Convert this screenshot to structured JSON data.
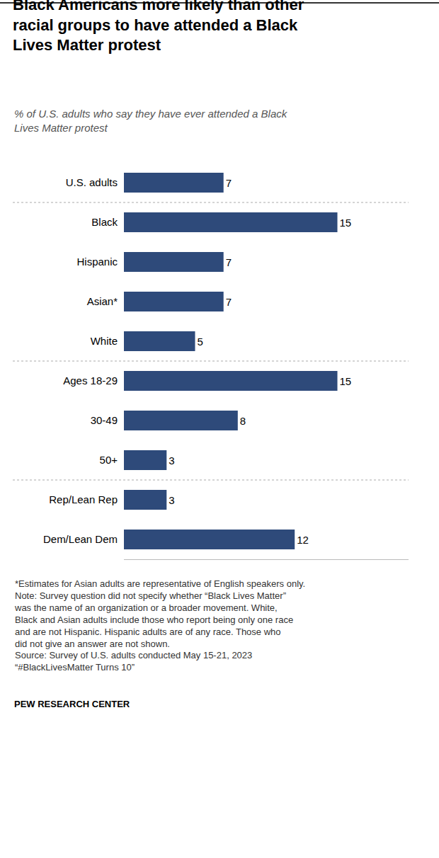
{
  "chart_data": {
    "type": "bar",
    "orientation": "horizontal",
    "title": "Black Americans more likely than other\nracial groups to have attended a Black\nLives Matter protest",
    "subtitle": "% of U.S. adults who say they have ever attended a Black\nLives Matter protest",
    "categories": [
      "U.S. adults",
      "Black",
      "Hispanic",
      "Asian*",
      "White",
      "Ages 18-29",
      "30-49",
      "50+",
      "Rep/Lean Rep",
      "Dem/Lean Dem"
    ],
    "values": [
      7,
      15,
      7,
      7,
      5,
      15,
      8,
      3,
      3,
      12
    ],
    "color": "#2E4A7A",
    "xlim": [
      0,
      20
    ],
    "data_labels": true,
    "tick_labels": "y",
    "grid": false,
    "footnote": [
      "*Estimates for Asian adults are representative of English speakers only.",
      "Note: Survey question did not specify whether “Black Lives Matter”",
      "was the name of an organization or a broader movement. White,",
      "Black and Asian adults include those who report being only one race",
      "and are not Hispanic. Hispanic adults are of any race. Those who",
      "did not give an answer are not shown.",
      "Source: Survey of U.S. adults conducted May 15-21, 2023",
      "“#BlackLivesMatter Turns 10”"
    ],
    "source": "PEW RESEARCH CENTER"
  }
}
